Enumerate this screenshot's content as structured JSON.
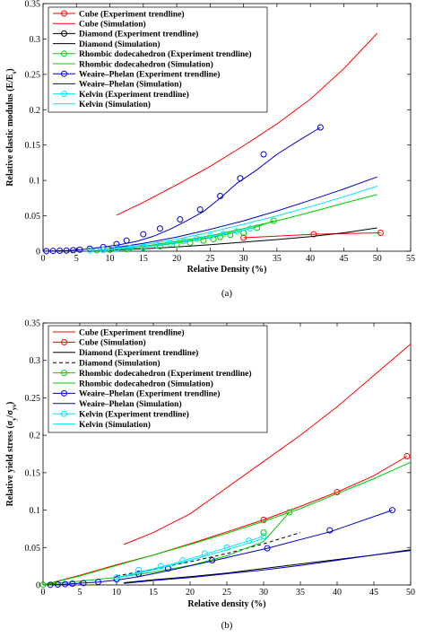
{
  "chart_data": [
    {
      "type": "line",
      "caption": "(a)",
      "xlabel": "Relative Density (%)",
      "ylabel": "Relative elastic modulus (E/E",
      "ylabel_sub": "s",
      "ylabel_end": ")",
      "xlim": [
        0,
        55
      ],
      "ylim": [
        0,
        0.35
      ],
      "xticks": [
        0,
        5,
        10,
        15,
        20,
        25,
        30,
        35,
        40,
        45,
        50,
        55
      ],
      "yticks": [
        0,
        0.05,
        0.1,
        0.15,
        0.2,
        0.25,
        0.3,
        0.35
      ],
      "xtick_labels": [
        "0",
        "5",
        "10",
        "15",
        "20",
        "25",
        "30",
        "35",
        "40",
        "45",
        "50",
        "55"
      ],
      "ytick_labels": [
        "0",
        "0.05",
        "0.1",
        "0.15",
        "0.2",
        "0.25",
        "0.3",
        "0.35"
      ],
      "grid": false,
      "legend_position": "top-left",
      "series": [
        {
          "name": "Cube (Experiment trendline)",
          "color": "#ff0000",
          "marker": "circle",
          "x": [
            10,
            15,
            20,
            25,
            30,
            35,
            40,
            45,
            50
          ],
          "y": [
            0.0015,
            0.0033,
            0.0056,
            0.0086,
            0.012,
            0.0158,
            0.0198,
            0.0242,
            0.029
          ],
          "markers": [
            [
              30.0,
              0.019
            ],
            [
              40.5,
              0.024
            ],
            [
              50.5,
              0.026
            ]
          ],
          "lineless": true
        },
        {
          "name": "Cube (Simulation)",
          "color": "#ff0000",
          "marker": "none",
          "x": [
            11,
            15,
            20,
            25,
            30,
            35,
            40,
            45,
            50
          ],
          "y": [
            0.051,
            0.069,
            0.094,
            0.12,
            0.149,
            0.18,
            0.215,
            0.258,
            0.308
          ]
        },
        {
          "name": "Diamond (Experiment trendline)",
          "color": "#000000",
          "marker": "circle",
          "x": [],
          "y": [],
          "markers": [],
          "lineless": true
        },
        {
          "name": "Diamond (Simulation)",
          "color": "#000000",
          "marker": "none",
          "x": [
            10,
            15,
            20,
            25,
            30,
            35,
            40,
            45,
            50
          ],
          "y": [
            0.0015,
            0.0035,
            0.006,
            0.0093,
            0.0128,
            0.0165,
            0.0205,
            0.026,
            0.033
          ]
        },
        {
          "name": "Rhombic dodecahedron (Experiment trendline)",
          "color": "#00cc00",
          "marker": "circle",
          "x": [
            8,
            10,
            12,
            14,
            16,
            18,
            20,
            22,
            24,
            26,
            28,
            30,
            32,
            34.5
          ],
          "y": [
            0.0012,
            0.002,
            0.0033,
            0.005,
            0.0068,
            0.009,
            0.0115,
            0.0143,
            0.0175,
            0.021,
            0.0252,
            0.0295,
            0.0345,
            0.043
          ],
          "markers": [
            [
              8,
              0.0012
            ],
            [
              10,
              0.002
            ],
            [
              12.5,
              0.003
            ],
            [
              15,
              0.005
            ],
            [
              17.5,
              0.007
            ],
            [
              20,
              0.0095
            ],
            [
              22,
              0.012
            ],
            [
              24,
              0.015
            ],
            [
              25.5,
              0.017
            ],
            [
              26.5,
              0.02
            ],
            [
              28,
              0.023
            ],
            [
              30,
              0.026
            ],
            [
              32,
              0.033
            ],
            [
              34.5,
              0.043
            ]
          ]
        },
        {
          "name": "Rhombic dodecahedron (Simulation)",
          "color": "#00cc00",
          "marker": "none",
          "x": [
            10,
            15,
            20,
            25,
            30,
            35,
            40,
            45,
            50
          ],
          "y": [
            0.0025,
            0.007,
            0.014,
            0.022,
            0.032,
            0.043,
            0.055,
            0.068,
            0.08
          ]
        },
        {
          "name": "Weaire–Phelan (Experiment trendline)",
          "color": "#0000cc",
          "marker": "circle",
          "x": [
            0.5,
            1.5,
            2.5,
            3.5,
            4.5,
            5.5,
            7,
            9,
            11.5,
            14,
            16.5,
            19,
            21.5,
            24,
            26.5,
            29,
            32,
            35,
            38,
            41.5
          ],
          "y": [
            0.0002,
            0.0004,
            0.0006,
            0.0009,
            0.0014,
            0.0022,
            0.0035,
            0.0058,
            0.0092,
            0.014,
            0.021,
            0.031,
            0.043,
            0.056,
            0.075,
            0.096,
            0.115,
            0.137,
            0.155,
            0.175
          ],
          "markers": [
            [
              0.5,
              0.0002
            ],
            [
              1.5,
              0.0004
            ],
            [
              2.5,
              0.0006
            ],
            [
              3.5,
              0.0009
            ],
            [
              4.5,
              0.0014
            ],
            [
              5.5,
              0.0022
            ],
            [
              7,
              0.0035
            ],
            [
              9,
              0.0058
            ],
            [
              11,
              0.01
            ],
            [
              12.5,
              0.015
            ],
            [
              15,
              0.024
            ],
            [
              17.5,
              0.032
            ],
            [
              20.5,
              0.045
            ],
            [
              23.5,
              0.059
            ],
            [
              26.5,
              0.078
            ],
            [
              29.5,
              0.103
            ],
            [
              33,
              0.137
            ],
            [
              41.5,
              0.175
            ]
          ]
        },
        {
          "name": "Weaire–Phelan (Simulation)",
          "color": "#0000cc",
          "marker": "none",
          "x": [
            10,
            15,
            20,
            25,
            30,
            35,
            40,
            45,
            50
          ],
          "y": [
            0.004,
            0.011,
            0.02,
            0.031,
            0.043,
            0.057,
            0.072,
            0.088,
            0.105
          ]
        },
        {
          "name": "Kelvin (Experiment trendline)",
          "color": "#00e5ff",
          "marker": "circle",
          "x": [
            7,
            9,
            11,
            13,
            15,
            17,
            19,
            21,
            23,
            25,
            27,
            29,
            31
          ],
          "y": [
            0.001,
            0.0019,
            0.003,
            0.0045,
            0.0062,
            0.0085,
            0.011,
            0.014,
            0.0175,
            0.021,
            0.0245,
            0.028,
            0.032
          ],
          "markers": [
            [
              7,
              0.001
            ],
            [
              9,
              0.0019
            ],
            [
              11,
              0.003
            ],
            [
              13,
              0.0045
            ],
            [
              15,
              0.0062
            ],
            [
              17,
              0.0085
            ],
            [
              19,
              0.011
            ],
            [
              21,
              0.014
            ],
            [
              23,
              0.0175
            ],
            [
              25,
              0.021
            ],
            [
              27,
              0.0245
            ],
            [
              29,
              0.028
            ],
            [
              31,
              0.032
            ]
          ]
        },
        {
          "name": "Kelvin (Simulation)",
          "color": "#00e5ff",
          "marker": "none",
          "x": [
            10,
            15,
            20,
            25,
            30,
            35,
            40,
            45,
            50
          ],
          "y": [
            0.003,
            0.009,
            0.017,
            0.027,
            0.038,
            0.05,
            0.063,
            0.077,
            0.092
          ]
        }
      ]
    },
    {
      "type": "line",
      "caption": "(b)",
      "xlabel": "Relative density (%)",
      "ylabel": "Relative yield stress (σ",
      "ylabel_sub": "y",
      "ylabel_mid": "/σ",
      "ylabel_sub2": "ys",
      "ylabel_end": ")",
      "xlim": [
        0,
        50
      ],
      "ylim": [
        0,
        0.35
      ],
      "xticks": [
        0,
        5,
        10,
        15,
        20,
        25,
        30,
        35,
        40,
        45,
        50
      ],
      "yticks": [
        0,
        0.05,
        0.1,
        0.15,
        0.2,
        0.25,
        0.3,
        0.35
      ],
      "xtick_labels": [
        "0",
        "5",
        "10",
        "15",
        "20",
        "25",
        "30",
        "35",
        "40",
        "45",
        "50"
      ],
      "ytick_labels": [
        "0",
        "0.05",
        "0.1",
        "0.15",
        "0.2",
        "0.25",
        "0.3",
        "0.35"
      ],
      "grid": false,
      "legend_position": "top-left",
      "series": [
        {
          "name": "Cube (Experiment trendline)",
          "color": "#ff0000",
          "marker": "none",
          "x": [
            11,
            15,
            20,
            25,
            30,
            35,
            40,
            45,
            50
          ],
          "y": [
            0.054,
            0.07,
            0.095,
            0.13,
            0.165,
            0.2,
            0.238,
            0.28,
            0.322
          ]
        },
        {
          "name": "Cube (Simulation)",
          "color": "#ff0000",
          "marker": "circle",
          "x": [
            0,
            5,
            10,
            15,
            20,
            25,
            30,
            35,
            40,
            45,
            49.5
          ],
          "y": [
            0,
            0.013,
            0.027,
            0.04,
            0.055,
            0.071,
            0.087,
            0.105,
            0.124,
            0.146,
            0.172
          ],
          "markers": [
            [
              30,
              0.087
            ],
            [
              40,
              0.124
            ],
            [
              49.5,
              0.172
            ]
          ]
        },
        {
          "name": "Diamond (Experiment trendline)",
          "color": "#000000",
          "marker": "none",
          "x": [
            11,
            15,
            20,
            25,
            30,
            35,
            40,
            45,
            50
          ],
          "y": [
            0.003,
            0.007,
            0.011,
            0.016,
            0.022,
            0.028,
            0.034,
            0.04,
            0.047
          ]
        },
        {
          "name": "Diamond (Simulation)",
          "color": "#000000",
          "marker": "none",
          "dashed": true,
          "x": [
            10,
            15,
            20,
            25,
            30,
            35
          ],
          "y": [
            0.012,
            0.021,
            0.031,
            0.042,
            0.055,
            0.07
          ]
        },
        {
          "name": "Rhombic dodecahedron (Experiment trendline)",
          "color": "#00cc00",
          "marker": "circle",
          "x": [
            0,
            5,
            10,
            15,
            20,
            25,
            30,
            33.5
          ],
          "y": [
            0.0005,
            0.005,
            0.01,
            0.017,
            0.026,
            0.039,
            0.058,
            0.097
          ],
          "markers": [
            [
              0,
              0.0005
            ],
            [
              30,
              0.07
            ],
            [
              33.5,
              0.097
            ]
          ]
        },
        {
          "name": "Rhombic dodecahedron (Simulation)",
          "color": "#00cc00",
          "marker": "none",
          "x": [
            0,
            5,
            10,
            15,
            20,
            25,
            30,
            35,
            40,
            45,
            50
          ],
          "y": [
            0,
            0.012,
            0.026,
            0.04,
            0.054,
            0.069,
            0.085,
            0.102,
            0.122,
            0.142,
            0.164
          ]
        },
        {
          "name": "Weaire–Phelan (Experiment trendline)",
          "color": "#0000cc",
          "marker": "circle",
          "x": [
            1,
            2,
            3,
            4,
            5.5,
            7.5,
            10,
            13,
            17,
            23,
            30.5,
            39,
            47.5
          ],
          "y": [
            0.0002,
            0.0006,
            0.0011,
            0.0017,
            0.0026,
            0.004,
            0.0065,
            0.011,
            0.019,
            0.032,
            0.049,
            0.071,
            0.1
          ],
          "markers": [
            [
              1,
              0.0002
            ],
            [
              2,
              0.0006
            ],
            [
              3,
              0.0011
            ],
            [
              4,
              0.0017
            ],
            [
              5.5,
              0.0026
            ],
            [
              7.5,
              0.004
            ],
            [
              10,
              0.0075
            ],
            [
              13,
              0.015
            ],
            [
              17,
              0.022
            ],
            [
              23,
              0.033
            ],
            [
              30.5,
              0.049
            ],
            [
              39,
              0.073
            ],
            [
              47.5,
              0.1
            ]
          ]
        },
        {
          "name": "Weaire–Phelan (Simulation)",
          "color": "#0000cc",
          "marker": "none",
          "x": [
            11,
            15,
            20,
            25,
            30,
            35,
            40,
            45,
            50
          ],
          "y": [
            0.002,
            0.006,
            0.01,
            0.015,
            0.02,
            0.026,
            0.033,
            0.04,
            0.046
          ]
        },
        {
          "name": "Kelvin (Experiment trendline)",
          "color": "#00e5ff",
          "marker": "circle",
          "x": [
            10,
            13,
            16,
            19,
            22,
            25,
            28,
            30
          ],
          "y": [
            0.01,
            0.017,
            0.024,
            0.032,
            0.041,
            0.05,
            0.059,
            0.065
          ],
          "markers": [
            [
              10,
              0.01
            ],
            [
              13,
              0.02
            ],
            [
              16,
              0.025
            ],
            [
              19,
              0.033
            ],
            [
              22,
              0.042
            ],
            [
              25,
              0.05
            ],
            [
              28,
              0.059
            ],
            [
              30,
              0.065
            ]
          ]
        },
        {
          "name": "Kelvin (Simulation)",
          "color": "#00e5ff",
          "marker": "none",
          "x": [
            10,
            15,
            20,
            25,
            30
          ],
          "y": [
            0.009,
            0.02,
            0.033,
            0.047,
            0.062
          ]
        }
      ]
    }
  ]
}
